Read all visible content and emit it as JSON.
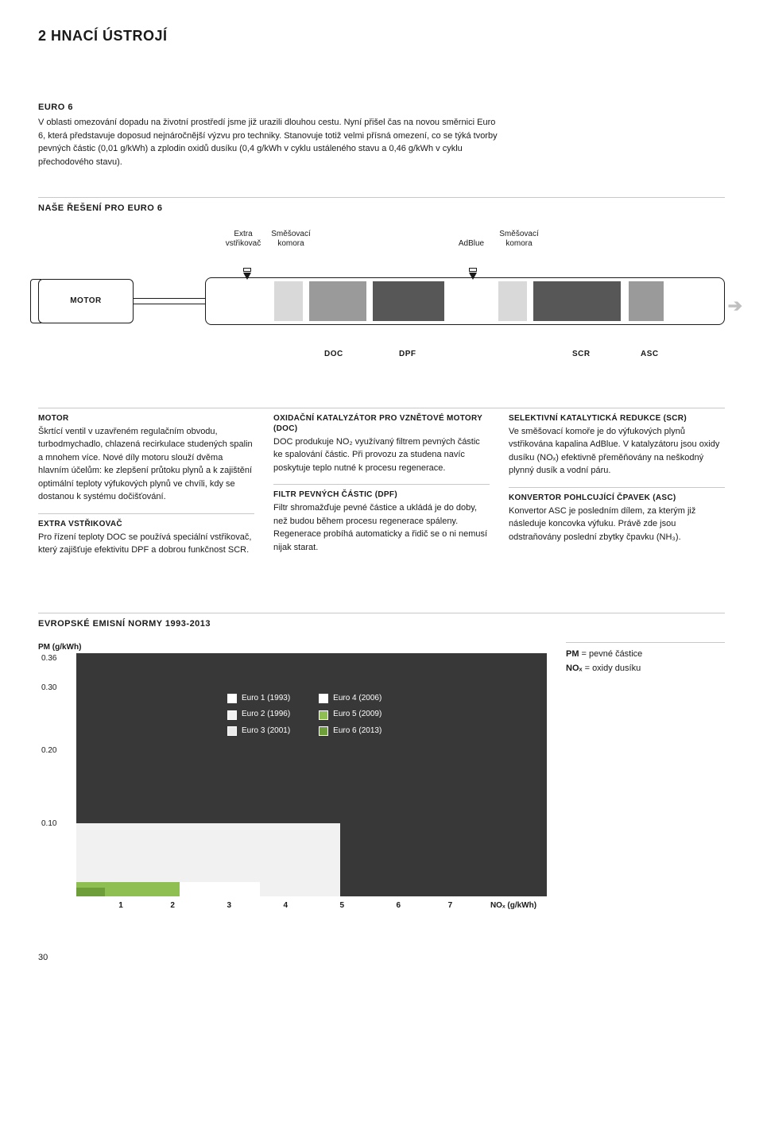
{
  "page": {
    "section_header": "2 HNACÍ ÚSTROJÍ",
    "number": "30"
  },
  "intro": {
    "title": "EURO 6",
    "text": "V oblasti omezování dopadu na životní prostředí jsme již urazili dlouhou cestu. Nyní přišel čas na novou směrnici Euro 6, která představuje doposud nejnáročnější výzvu pro techniky. Stanovuje totiž velmi přísná omezení, co se týká tvorby pevných částic (0,01 g/kWh) a zplodin oxidů dusíku (0,4 g/kWh v cyklu ustáleného stavu a 0,46 g/kWh v cyklu přechodového stavu)."
  },
  "solution": {
    "heading": "NAŠE ŘEŠENÍ PRO EURO 6",
    "motor": "MOTOR",
    "labels_top": {
      "extra_l1": "Extra",
      "extra_l2": "vstřikovač",
      "mix1_l1": "Směšovací",
      "mix1_l2": "komora",
      "adblue": "AdBlue",
      "mix2_l1": "Směšovací",
      "mix2_l2": "komora"
    },
    "labels_bottom": {
      "doc": "DOC",
      "dpf": "DPF",
      "scr": "SCR",
      "asc": "ASC"
    }
  },
  "columns": {
    "motor": {
      "h": "MOTOR",
      "p": "Škrtící ventil v uzavřeném regulačním obvodu, turbodmychadlo, chlazená recirkulace studených spalin a mnohem více. Nové díly motoru slouží dvěma hlavním účelům: ke zlepšení průtoku plynů a k zajištění optimální teploty výfukových plynů ve chvíli, kdy se dostanou k systému dočišťování."
    },
    "extra": {
      "h": "EXTRA VSTŘIKOVAČ",
      "p": "Pro řízení teploty DOC se používá speciální vstřikovač, který zajišťuje efektivitu DPF a dobrou funkčnost SCR."
    },
    "doc": {
      "h": "OXIDAČNÍ KATALYZÁTOR PRO VZNĚTOVÉ MOTORY (DOC)",
      "p": "DOC produkuje NO₂ využívaný filtrem pevných částic ke spalování částic. Při provozu za studena navíc poskytuje teplo nutné k procesu regenerace."
    },
    "dpf": {
      "h": "FILTR PEVNÝCH ČÁSTIC (DPF)",
      "p": "Filtr shromažďuje pevné částice a ukládá je do doby, než budou během procesu regenerace spáleny. Regenerace probíhá automaticky a řidič se o ni nemusí nijak starat."
    },
    "scr": {
      "h": "SELEKTIVNÍ KATALYTICKÁ REDUKCE (SCR)",
      "p": "Ve směšovací komoře je do výfukových plynů vstřikována kapalina AdBlue. V katalyzátoru jsou oxidy dusíku (NOₓ) efektivně přeměňovány na neškodný plynný dusík a vodní páru."
    },
    "asc": {
      "h": "KONVERTOR POHLCUJÍCÍ ČPAVEK (ASC)",
      "p": "Konvertor ASC je posledním dílem, za kterým již následuje koncovka výfuku. Právě zde jsou odstraňovány poslední zbytky čpavku (NH₃)."
    }
  },
  "emissions": {
    "heading": "EVROPSKÉ EMISNÍ NORMY 1993-2013",
    "y_label": "PM (g/kWh)",
    "y_ticks": [
      "0.36",
      "0.30",
      "0.20",
      "0.10"
    ],
    "y_positions_pct": [
      0,
      12,
      38,
      68
    ],
    "x_label_suffix": "NOₓ (g/kWh)",
    "x_ticks": [
      "1",
      "2",
      "3",
      "4",
      "5",
      "6",
      "7"
    ],
    "x_positions_pct": [
      9,
      20,
      32,
      44,
      56,
      68,
      79
    ],
    "legend": [
      {
        "label": "Euro 1 (1993)",
        "color": "#ffffff"
      },
      {
        "label": "Euro 2 (1996)",
        "color": "#f2f2f2"
      },
      {
        "label": "Euro 3 (2001)",
        "color": "#eaeaea"
      },
      {
        "label": "Euro 4 (2006)",
        "color": "#ffffff"
      },
      {
        "label": "Euro 5 (2009)",
        "color": "#8FBE52"
      },
      {
        "label": "Euro 6 (2013)",
        "color": "#6E9E3A"
      }
    ],
    "bars": [
      {
        "cls": "e3",
        "left_pct": 0,
        "width_pct": 56,
        "height_pct": 30
      },
      {
        "cls": "e4",
        "left_pct": 0,
        "width_pct": 39,
        "height_pct": 6
      },
      {
        "cls": "e5",
        "left_pct": 0,
        "width_pct": 22,
        "height_pct": 6
      },
      {
        "cls": "e6",
        "left_pct": 0,
        "width_pct": 6,
        "height_pct": 3.5
      }
    ],
    "side_legend": {
      "pm_l": "PM",
      "pm_r": " = pevné částice",
      "no_l": "NOₓ",
      "no_r": " = oxidy dusíku"
    }
  }
}
